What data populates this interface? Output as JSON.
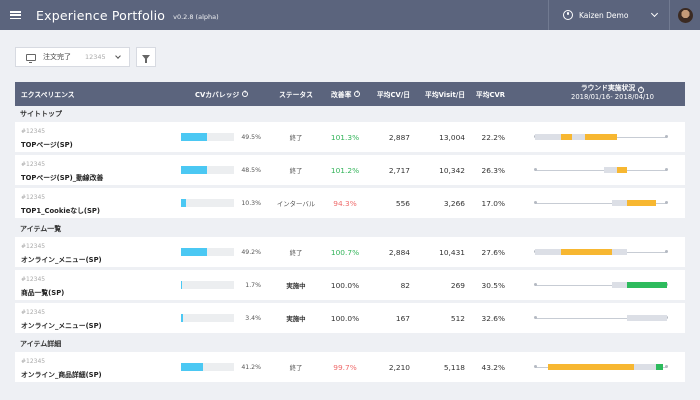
{
  "header": {
    "title": "Experience Portfolio",
    "version": "v0.2.8  (alpha)",
    "user_name": "Kaizen Demo"
  },
  "toolbar": {
    "goal_label": "注文完了",
    "goal_id": "12345"
  },
  "columns": {
    "experience": "エクスペリエンス",
    "coverage": "CVカバレッジ",
    "status": "ステータス",
    "improvement": "改善率",
    "avg_cv": "平均CV/日",
    "avg_visit": "平均Visit/日",
    "avg_cvr": "平均CVR",
    "round": "ラウンド実施状況",
    "round_period": "2018/01/16- 2018/04/10"
  },
  "colors": {
    "positive": "#34b45a",
    "negative": "#ef6b6b",
    "neutral": "#333333",
    "coverage": "#4bc8f3",
    "seg_gray": "#dcdfe6",
    "seg_yellow": "#f7b731",
    "seg_green": "#2dbb5d"
  },
  "groups": [
    {
      "label": "サイトトップ",
      "rows": [
        {
          "id": "#12345",
          "name": "TOPページ(SP)",
          "coverage": 49.5,
          "coverage_text": "49.5%",
          "status": "終了",
          "status_bold": false,
          "improvement": "101.3%",
          "trend": "positive",
          "avg_cv": "2,887",
          "avg_visit": "13,004",
          "cvr": "22.2%",
          "timeline": [
            {
              "s": 0.0,
              "e": 0.2,
              "c": "seg_gray"
            },
            {
              "s": 0.2,
              "e": 0.28,
              "c": "seg_yellow"
            },
            {
              "s": 0.28,
              "e": 0.38,
              "c": "seg_gray"
            },
            {
              "s": 0.38,
              "e": 0.62,
              "c": "seg_yellow"
            }
          ]
        },
        {
          "id": "#12345",
          "name": "TOPページ(SP)_動線改善",
          "coverage": 48.5,
          "coverage_text": "48.5%",
          "status": "終了",
          "status_bold": false,
          "improvement": "101.2%",
          "trend": "positive",
          "avg_cv": "2,717",
          "avg_visit": "10,342",
          "cvr": "26.3%",
          "timeline": [
            {
              "s": 0.52,
              "e": 0.62,
              "c": "seg_gray"
            },
            {
              "s": 0.62,
              "e": 0.7,
              "c": "seg_yellow"
            }
          ]
        },
        {
          "id": "#12345",
          "name": "TOP1_Cookieなし(SP)",
          "coverage": 10.3,
          "coverage_text": "10.3%",
          "status": "インターバル",
          "status_bold": false,
          "improvement": "94.3%",
          "trend": "negative",
          "avg_cv": "556",
          "avg_visit": "3,266",
          "cvr": "17.0%",
          "timeline": [
            {
              "s": 0.58,
              "e": 0.7,
              "c": "seg_gray"
            },
            {
              "s": 0.7,
              "e": 0.92,
              "c": "seg_yellow"
            }
          ]
        }
      ]
    },
    {
      "label": "アイテム一覧",
      "rows": [
        {
          "id": "#12345",
          "name": "オンライン_メニュー(SP)",
          "coverage": 49.2,
          "coverage_text": "49.2%",
          "status": "終了",
          "status_bold": false,
          "improvement": "100.7%",
          "trend": "positive",
          "avg_cv": "2,884",
          "avg_visit": "10,431",
          "cvr": "27.6%",
          "timeline": [
            {
              "s": 0.0,
              "e": 0.2,
              "c": "seg_gray"
            },
            {
              "s": 0.2,
              "e": 0.58,
              "c": "seg_yellow"
            },
            {
              "s": 0.58,
              "e": 0.7,
              "c": "seg_gray"
            }
          ]
        },
        {
          "id": "#12345",
          "name": "商品一覧(SP)",
          "coverage": 1.7,
          "coverage_text": "1.7%",
          "status": "実施中",
          "status_bold": true,
          "improvement": "100.0%",
          "trend": "neutral",
          "avg_cv": "82",
          "avg_visit": "269",
          "cvr": "30.5%",
          "timeline": [
            {
              "s": 0.58,
              "e": 0.7,
              "c": "seg_gray"
            },
            {
              "s": 0.7,
              "e": 1.0,
              "c": "seg_green"
            }
          ]
        },
        {
          "id": "#12345",
          "name": "オンライン_メニュー(SP)",
          "coverage": 3.4,
          "coverage_text": "3.4%",
          "status": "実施中",
          "status_bold": true,
          "improvement": "100.0%",
          "trend": "neutral",
          "avg_cv": "167",
          "avg_visit": "512",
          "cvr": "32.6%",
          "timeline": [
            {
              "s": 0.7,
              "e": 1.0,
              "c": "seg_gray"
            }
          ]
        }
      ]
    },
    {
      "label": "アイテム詳細",
      "rows": [
        {
          "id": "#12345",
          "name": "オンライン_商品詳細(SP)",
          "coverage": 41.2,
          "coverage_text": "41.2%",
          "status": "終了",
          "status_bold": false,
          "improvement": "99.7%",
          "trend": "negative",
          "avg_cv": "2,210",
          "avg_visit": "5,118",
          "cvr": "43.2%",
          "timeline": [
            {
              "s": 0.1,
              "e": 0.75,
              "c": "seg_yellow"
            },
            {
              "s": 0.75,
              "e": 0.92,
              "c": "seg_gray"
            },
            {
              "s": 0.92,
              "e": 0.97,
              "c": "seg_green"
            }
          ]
        }
      ]
    }
  ]
}
